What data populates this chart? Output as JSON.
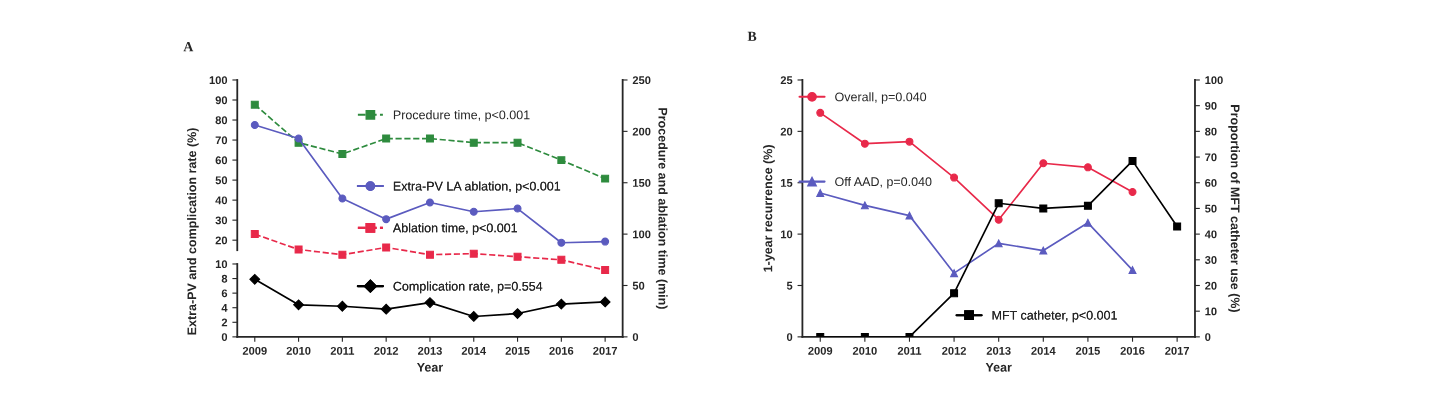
{
  "chart_data": [
    {
      "type": "line",
      "title": "A",
      "ylabel": "Extra-PV and complication rate (%)",
      "categories": [
        "2009",
        "2010",
        "2011",
        "2012",
        "2013",
        "2014",
        "2015",
        "2016",
        "2017"
      ],
      "ylim": [
        15,
        100
      ],
      "yticks": [
        20,
        30,
        40,
        50,
        60,
        70,
        80,
        90,
        100
      ],
      "tick_labels": "y",
      "legend": "right",
      "grid": false,
      "series": [
        {
          "name": "Extra-PV LA ablation, p<0.001",
          "color": "#5b5bbf",
          "marker": "circle",
          "line_style": "solid",
          "values": [
            77.5,
            70.8,
            40.8,
            30.5,
            38.8,
            34.2,
            35.8,
            18.7,
            19.3
          ]
        }
      ]
    },
    {
      "type": "line",
      "xlabel": "Year",
      "categories": [
        "2009",
        "2010",
        "2011",
        "2012",
        "2013",
        "2014",
        "2015",
        "2016",
        "2017"
      ],
      "ylim": [
        0,
        10
      ],
      "yticks": [
        0,
        2,
        4,
        6,
        8,
        10
      ],
      "legend": "right",
      "grid": false,
      "series": [
        {
          "name": "Complication rate, p=0.554",
          "color": "#000000",
          "marker": "diamond",
          "line_style": "solid",
          "values": [
            7.9,
            4.4,
            4.2,
            3.8,
            4.7,
            2.8,
            3.2,
            4.5,
            4.8
          ]
        }
      ]
    },
    {
      "type": "line",
      "ylabel": "Procedure and ablation time (min)",
      "categories": [
        "2009",
        "2010",
        "2011",
        "2012",
        "2013",
        "2014",
        "2015",
        "2016",
        "2017"
      ],
      "ylim": [
        0,
        250
      ],
      "yticks": [
        0,
        50,
        100,
        150,
        200,
        250
      ],
      "tick_labels": "y",
      "legend": "right",
      "grid": false,
      "series": [
        {
          "name": "Procedure time, p<0.001",
          "color": "#2e8b3e",
          "marker": "square",
          "line_style": "dashed",
          "values": [
            226,
            189,
            178,
            193,
            193,
            189,
            189,
            172,
            154
          ]
        },
        {
          "name": "Ablation time, p<0.001",
          "color": "#e8294a",
          "marker": "square",
          "line_style": "dashed",
          "values": [
            100,
            85,
            80,
            87,
            80,
            81,
            78,
            75,
            65
          ]
        }
      ]
    },
    {
      "type": "line",
      "title": "B",
      "xlabel": "Year",
      "ylabel": "1-year recurrence (%)",
      "y2label": "Proportion of MFT catheter use (%)",
      "categories": [
        "2009",
        "2010",
        "2011",
        "2012",
        "2013",
        "2014",
        "2015",
        "2016",
        "2017"
      ],
      "ylim": [
        0,
        25
      ],
      "yticks": [
        0,
        5,
        10,
        15,
        20,
        25
      ],
      "y2lim": [
        0,
        100
      ],
      "y2ticks": [
        0,
        10,
        20,
        30,
        40,
        50,
        60,
        70,
        80,
        90,
        100
      ],
      "legend": "left",
      "grid": false,
      "series": [
        {
          "name": "Overall, p=0.040",
          "color": "#e8294a",
          "marker": "circle",
          "line_style": "solid",
          "values": [
            21.8,
            18.8,
            19.0,
            15.5,
            11.4,
            16.9,
            16.5,
            14.1,
            null
          ]
        },
        {
          "name": "Off AAD, p=0.040",
          "color": "#5b5bbf",
          "marker": "triangle",
          "line_style": "solid",
          "values": [
            14.0,
            12.8,
            11.8,
            6.2,
            9.1,
            8.4,
            11.1,
            6.5,
            null
          ]
        },
        {
          "name": "MFT catheter, p<0.001",
          "color": "#000000",
          "axis": "y2",
          "marker": "square",
          "line_style": "solid",
          "values": [
            0,
            0,
            0,
            17,
            52,
            50,
            51,
            68.5,
            43
          ]
        }
      ]
    }
  ]
}
